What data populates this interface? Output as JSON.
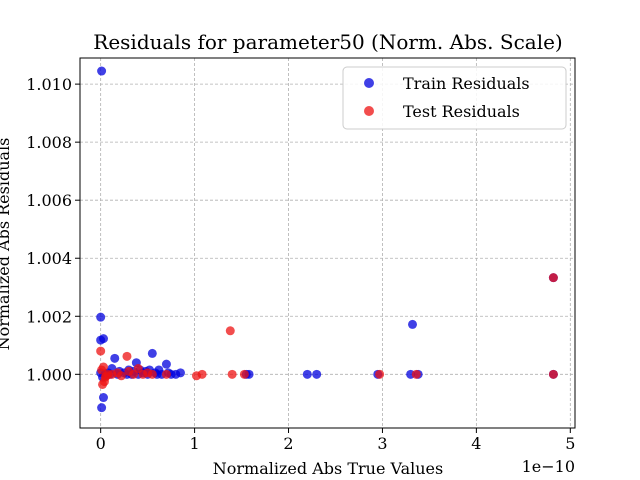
{
  "chart_data": {
    "type": "scatter",
    "title": "Residuals for parameter50 (Norm. Abs. Scale)",
    "xlabel": "Normalized Abs True Values",
    "ylabel": "Normalized Abs Residuals",
    "x_offset_label": "1e−10",
    "xlim": [
      -0.22,
      5.05
    ],
    "ylim": [
      0.99815,
      1.0109
    ],
    "xticks": [
      0,
      1,
      2,
      3,
      4,
      5
    ],
    "xtick_labels": [
      "0",
      "1",
      "2",
      "3",
      "4",
      "5"
    ],
    "yticks": [
      1.0,
      1.002,
      1.004,
      1.006,
      1.008,
      1.01
    ],
    "ytick_labels": [
      "1.000",
      "1.002",
      "1.004",
      "1.006",
      "1.008",
      "1.010"
    ],
    "grid": true,
    "legend_position": "top-right",
    "series": [
      {
        "name": "Train Residuals",
        "color": "#0000dd",
        "points": [
          [
            0.01,
            1.01045
          ],
          [
            0.0,
            1.00197
          ],
          [
            0.0,
            1.00118
          ],
          [
            0.03,
            1.00123
          ],
          [
            0.02,
            0.9999
          ],
          [
            0.03,
            0.9992
          ],
          [
            0.01,
            0.99885
          ],
          [
            0.0,
            1.00005
          ],
          [
            0.05,
            1.00002
          ],
          [
            0.08,
            1.00005
          ],
          [
            0.1,
            1.0
          ],
          [
            0.12,
            1.0002
          ],
          [
            0.15,
            1.00055
          ],
          [
            0.18,
            1.0
          ],
          [
            0.2,
            1.0001
          ],
          [
            0.25,
            1.00005
          ],
          [
            0.28,
            1.0
          ],
          [
            0.3,
            1.00015
          ],
          [
            0.33,
            1.0
          ],
          [
            0.35,
            1.0001
          ],
          [
            0.38,
            1.0004
          ],
          [
            0.4,
            1.0
          ],
          [
            0.42,
            1.00015
          ],
          [
            0.45,
            1.00005
          ],
          [
            0.48,
            1.0001
          ],
          [
            0.5,
            1.0
          ],
          [
            0.52,
            1.00015
          ],
          [
            0.55,
            1.00072
          ],
          [
            0.58,
            1.00005
          ],
          [
            0.6,
            1.0
          ],
          [
            0.62,
            1.00015
          ],
          [
            0.65,
            1.0
          ],
          [
            0.7,
            1.00035
          ],
          [
            0.72,
            1.00005
          ],
          [
            0.75,
            1.0
          ],
          [
            0.8,
            1.0
          ],
          [
            0.85,
            1.00005
          ],
          [
            1.55,
            1.0
          ],
          [
            1.58,
            1.0
          ],
          [
            2.2,
            1.0
          ],
          [
            2.3,
            1.0
          ],
          [
            2.95,
            1.0
          ],
          [
            3.3,
            1.0
          ],
          [
            3.32,
            1.00172
          ],
          [
            3.38,
            1.0
          ],
          [
            4.82,
            1.00333
          ],
          [
            4.82,
            1.0
          ]
        ]
      },
      {
        "name": "Test Residuals",
        "color": "#ee1111",
        "points": [
          [
            0.0,
            1.0008
          ],
          [
            0.01,
            1.00015
          ],
          [
            0.03,
            1.00025
          ],
          [
            0.05,
            0.9999
          ],
          [
            0.02,
            0.99965
          ],
          [
            0.04,
            0.99975
          ],
          [
            0.06,
            0.99995
          ],
          [
            0.08,
            1.0
          ],
          [
            0.12,
            1.0
          ],
          [
            0.18,
            1.00005
          ],
          [
            0.22,
            0.99995
          ],
          [
            0.28,
            1.00062
          ],
          [
            0.3,
            1.0001
          ],
          [
            0.35,
            1.0
          ],
          [
            0.4,
            1.0002
          ],
          [
            0.45,
            1.0
          ],
          [
            0.5,
            1.00005
          ],
          [
            0.55,
            1.0
          ],
          [
            0.7,
            1.0
          ],
          [
            1.02,
            0.99995
          ],
          [
            1.08,
            1.0
          ],
          [
            1.38,
            1.0015
          ],
          [
            1.4,
            1.0
          ],
          [
            1.53,
            1.0
          ],
          [
            2.97,
            1.0
          ],
          [
            3.36,
            1.0
          ],
          [
            4.82,
            1.00333
          ],
          [
            4.82,
            1.0
          ]
        ]
      }
    ]
  }
}
